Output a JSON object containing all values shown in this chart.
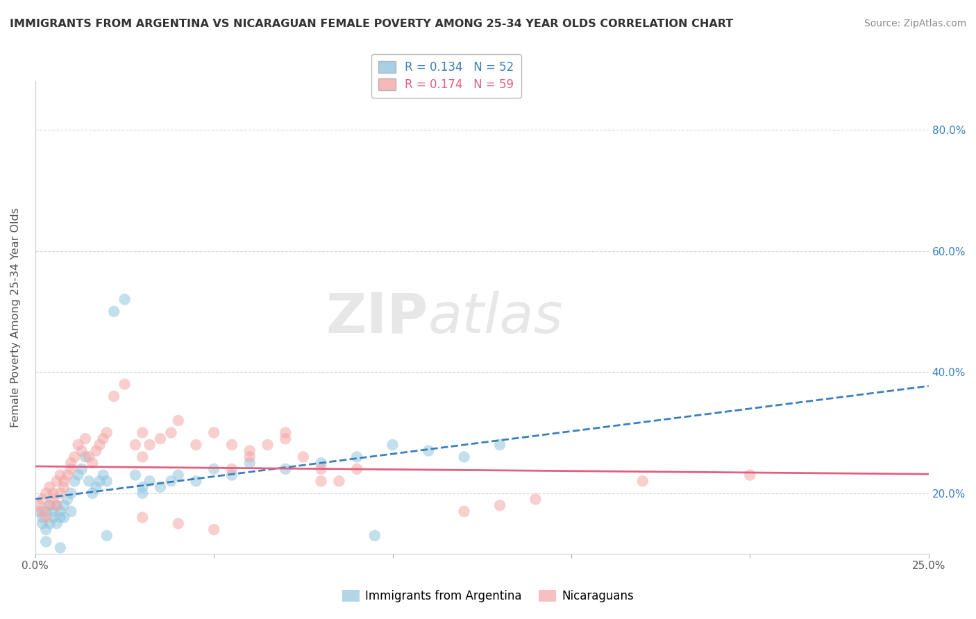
{
  "title": "IMMIGRANTS FROM ARGENTINA VS NICARAGUAN FEMALE POVERTY AMONG 25-34 YEAR OLDS CORRELATION CHART",
  "source": "Source: ZipAtlas.com",
  "ylabel": "Female Poverty Among 25-34 Year Olds",
  "legend1_label": "Immigrants from Argentina",
  "legend2_label": "Nicaraguans",
  "r1": 0.134,
  "n1": 52,
  "r2": 0.174,
  "n2": 59,
  "xlim": [
    0.0,
    0.25
  ],
  "ylim": [
    0.1,
    0.88
  ],
  "yticks": [
    0.2,
    0.4,
    0.6,
    0.8
  ],
  "ytick_labels": [
    "20.0%",
    "40.0%",
    "60.0%",
    "80.0%"
  ],
  "color_blue": "#92c5de",
  "color_pink": "#f4a6a6",
  "color_blue_line": "#3a7fbd",
  "color_pink_line": "#e06080",
  "watermark_zip": "ZIP",
  "watermark_atlas": "atlas",
  "argentina_x": [
    0.001,
    0.002,
    0.002,
    0.003,
    0.003,
    0.004,
    0.004,
    0.005,
    0.005,
    0.006,
    0.006,
    0.007,
    0.007,
    0.008,
    0.008,
    0.009,
    0.01,
    0.01,
    0.011,
    0.012,
    0.013,
    0.014,
    0.015,
    0.016,
    0.017,
    0.018,
    0.019,
    0.02,
    0.022,
    0.025,
    0.028,
    0.03,
    0.03,
    0.032,
    0.035,
    0.038,
    0.04,
    0.045,
    0.05,
    0.055,
    0.06,
    0.07,
    0.08,
    0.09,
    0.095,
    0.1,
    0.11,
    0.12,
    0.13,
    0.02,
    0.003,
    0.007
  ],
  "argentina_y": [
    0.17,
    0.15,
    0.16,
    0.14,
    0.17,
    0.15,
    0.18,
    0.16,
    0.17,
    0.15,
    0.18,
    0.16,
    0.17,
    0.16,
    0.18,
    0.19,
    0.17,
    0.2,
    0.22,
    0.23,
    0.24,
    0.26,
    0.22,
    0.2,
    0.21,
    0.22,
    0.23,
    0.22,
    0.5,
    0.52,
    0.23,
    0.21,
    0.2,
    0.22,
    0.21,
    0.22,
    0.23,
    0.22,
    0.24,
    0.23,
    0.25,
    0.24,
    0.25,
    0.26,
    0.13,
    0.28,
    0.27,
    0.26,
    0.28,
    0.13,
    0.12,
    0.11
  ],
  "nicaragua_x": [
    0.001,
    0.002,
    0.002,
    0.003,
    0.003,
    0.004,
    0.004,
    0.005,
    0.005,
    0.006,
    0.006,
    0.007,
    0.007,
    0.008,
    0.008,
    0.009,
    0.01,
    0.01,
    0.011,
    0.012,
    0.013,
    0.014,
    0.015,
    0.016,
    0.017,
    0.018,
    0.019,
    0.02,
    0.022,
    0.025,
    0.028,
    0.03,
    0.03,
    0.032,
    0.035,
    0.038,
    0.04,
    0.045,
    0.05,
    0.055,
    0.06,
    0.07,
    0.08,
    0.055,
    0.06,
    0.065,
    0.07,
    0.075,
    0.08,
    0.085,
    0.09,
    0.17,
    0.2,
    0.12,
    0.13,
    0.14,
    0.03,
    0.04,
    0.05
  ],
  "nicaragua_y": [
    0.18,
    0.17,
    0.19,
    0.16,
    0.2,
    0.18,
    0.21,
    0.19,
    0.2,
    0.18,
    0.22,
    0.2,
    0.23,
    0.21,
    0.22,
    0.23,
    0.24,
    0.25,
    0.26,
    0.28,
    0.27,
    0.29,
    0.26,
    0.25,
    0.27,
    0.28,
    0.29,
    0.3,
    0.36,
    0.38,
    0.28,
    0.26,
    0.3,
    0.28,
    0.29,
    0.3,
    0.32,
    0.28,
    0.3,
    0.28,
    0.27,
    0.29,
    0.22,
    0.24,
    0.26,
    0.28,
    0.3,
    0.26,
    0.24,
    0.22,
    0.24,
    0.22,
    0.23,
    0.17,
    0.18,
    0.19,
    0.16,
    0.15,
    0.14
  ]
}
